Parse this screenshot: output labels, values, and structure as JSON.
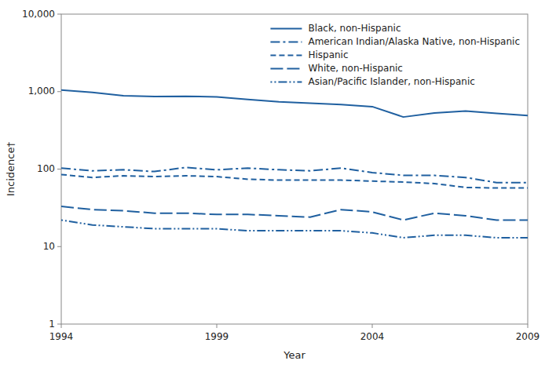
{
  "chart_data": {
    "type": "line",
    "xlabel": "Year",
    "ylabel": "Incidence†",
    "x": [
      1994,
      1995,
      1996,
      1997,
      1998,
      1999,
      2000,
      2001,
      2002,
      2003,
      2004,
      2005,
      2006,
      2007,
      2008,
      2009
    ],
    "series": [
      {
        "name": "Black, non-Hispanic",
        "color": "#2060a0",
        "line_style": "solid",
        "values": [
          1050,
          975,
          885,
          865,
          870,
          855,
          790,
          740,
          710,
          680,
          640,
          470,
          530,
          560,
          525,
          490
        ]
      },
      {
        "name": "American Indian/Alaska Native, non-Hispanic",
        "color": "#2060a0",
        "line_style": "dashdot",
        "values": [
          103,
          95,
          98,
          93,
          105,
          98,
          103,
          98,
          95,
          103,
          90,
          83,
          83,
          78,
          67,
          67
        ]
      },
      {
        "name": "Hispanic",
        "color": "#2060a0",
        "line_style": "dashed",
        "values": [
          85,
          78,
          82,
          80,
          82,
          80,
          74,
          72,
          72,
          72,
          70,
          68,
          65,
          58,
          57,
          57
        ]
      },
      {
        "name": "White, non-Hispanic",
        "color": "#2060a0",
        "line_style": "longdash",
        "values": [
          33,
          30,
          29,
          27,
          27,
          26,
          26,
          25,
          24,
          30,
          28,
          22,
          27,
          25,
          22,
          22
        ]
      },
      {
        "name": "Asian/Pacific Islander, non-Hispanic",
        "color": "#2060a0",
        "line_style": "dashdotdot",
        "values": [
          22,
          19,
          18,
          17,
          17,
          17,
          16,
          16,
          16,
          16,
          15,
          13,
          14,
          14,
          13,
          13
        ]
      }
    ],
    "log": "y",
    "xlim": [
      1994,
      2009
    ],
    "xticks": [
      1994,
      1999,
      2004,
      2009
    ],
    "ylim": [
      1,
      10000
    ],
    "yticks": [
      1,
      10,
      100,
      {
        "value": 1000,
        "label": "1,000"
      },
      {
        "value": 10000,
        "label": "10,000"
      }
    ],
    "grid": false,
    "legend": "upper right"
  }
}
